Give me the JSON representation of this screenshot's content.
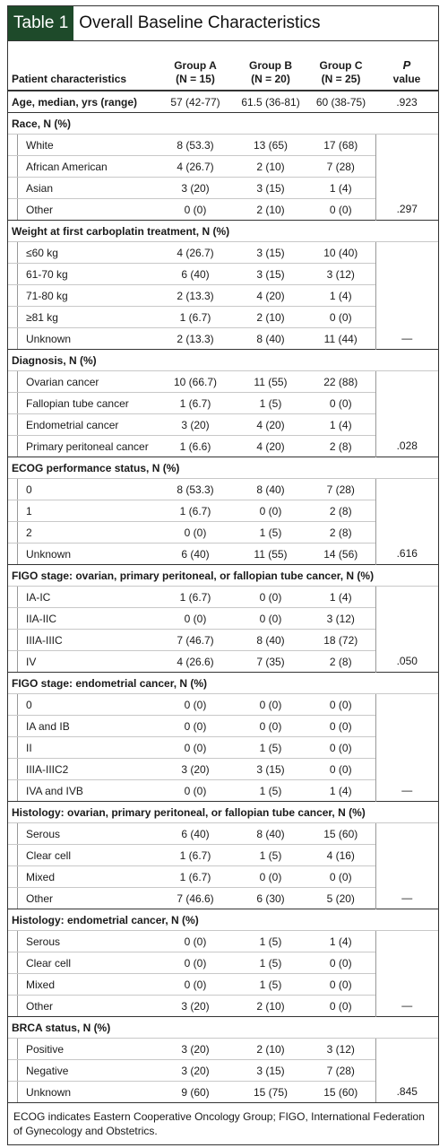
{
  "title": {
    "label": "Table 1",
    "text": "Overall Baseline Characteristics"
  },
  "columns": [
    [
      "Patient characteristics"
    ],
    [
      "Group A",
      "(N = 15)"
    ],
    [
      "Group B",
      "(N = 20)"
    ],
    [
      "Group C",
      "(N = 25)"
    ],
    [
      "P",
      "value"
    ]
  ],
  "age_row": {
    "label": "Age, median, yrs (range)",
    "values": [
      "57 (42-77)",
      "61.5 (36-81)",
      "60 (38-75)"
    ],
    "p": ".923"
  },
  "sections": [
    {
      "title": "Race, N (%)",
      "rows": [
        [
          "White",
          "8 (53.3)",
          "13 (65)",
          "17 (68)"
        ],
        [
          "African American",
          "4 (26.7)",
          "2 (10)",
          "7 (28)"
        ],
        [
          "Asian",
          "3 (20)",
          "3 (15)",
          "1 (4)"
        ],
        [
          "Other",
          "0 (0)",
          "2 (10)",
          "0 (0)"
        ]
      ],
      "p": ".297"
    },
    {
      "title": "Weight at first carboplatin treatment, N (%)",
      "rows": [
        [
          "≤60 kg",
          "4 (26.7)",
          "3 (15)",
          "10 (40)"
        ],
        [
          "61-70 kg",
          "6 (40)",
          "3 (15)",
          "3 (12)"
        ],
        [
          "71-80 kg",
          "2 (13.3)",
          "4 (20)",
          "1 (4)"
        ],
        [
          "≥81 kg",
          "1 (6.7)",
          "2 (10)",
          "0 (0)"
        ],
        [
          "Unknown",
          "2 (13.3)",
          "8 (40)",
          "11 (44)"
        ]
      ],
      "p": "—"
    },
    {
      "title": "Diagnosis, N (%)",
      "rows": [
        [
          "Ovarian cancer",
          "10 (66.7)",
          "11 (55)",
          "22 (88)"
        ],
        [
          "Fallopian tube cancer",
          "1 (6.7)",
          "1 (5)",
          "0 (0)"
        ],
        [
          "Endometrial cancer",
          "3 (20)",
          "4 (20)",
          "1 (4)"
        ],
        [
          "Primary peritoneal cancer",
          "1 (6.6)",
          "4 (20)",
          "2 (8)"
        ]
      ],
      "p": ".028"
    },
    {
      "title": "ECOG performance status, N (%)",
      "rows": [
        [
          "0",
          "8 (53.3)",
          "8 (40)",
          "7 (28)"
        ],
        [
          "1",
          "1 (6.7)",
          "0 (0)",
          "2 (8)"
        ],
        [
          "2",
          "0 (0)",
          "1 (5)",
          "2 (8)"
        ],
        [
          "Unknown",
          "6 (40)",
          "11 (55)",
          "14 (56)"
        ]
      ],
      "p": ".616"
    },
    {
      "title": "FIGO stage: ovarian, primary peritoneal, or fallopian tube cancer, N (%)",
      "rows": [
        [
          "IA-IC",
          "1 (6.7)",
          "0 (0)",
          "1 (4)"
        ],
        [
          "IIA-IIC",
          "0 (0)",
          "0 (0)",
          "3 (12)"
        ],
        [
          "IIIA-IIIC",
          "7 (46.7)",
          "8 (40)",
          "18 (72)"
        ],
        [
          "IV",
          "4 (26.6)",
          "7 (35)",
          "2 (8)"
        ]
      ],
      "p": ".050"
    },
    {
      "title": "FIGO stage: endometrial cancer, N (%)",
      "rows": [
        [
          "0",
          "0 (0)",
          "0 (0)",
          "0 (0)"
        ],
        [
          "IA and IB",
          "0 (0)",
          "0 (0)",
          "0 (0)"
        ],
        [
          "II",
          "0 (0)",
          "1 (5)",
          "0 (0)"
        ],
        [
          "IIIA-IIIC2",
          "3 (20)",
          "3 (15)",
          "0 (0)"
        ],
        [
          "IVA and IVB",
          "0 (0)",
          "1 (5)",
          "1 (4)"
        ]
      ],
      "p": "—"
    },
    {
      "title": "Histology: ovarian, primary peritoneal, or fallopian tube cancer, N (%)",
      "rows": [
        [
          "Serous",
          "6 (40)",
          "8 (40)",
          "15 (60)"
        ],
        [
          "Clear cell",
          "1 (6.7)",
          "1 (5)",
          "4 (16)"
        ],
        [
          "Mixed",
          "1 (6.7)",
          "0 (0)",
          "0 (0)"
        ],
        [
          "Other",
          "7 (46.6)",
          "6 (30)",
          "5 (20)"
        ]
      ],
      "p": "—"
    },
    {
      "title": "Histology: endometrial cancer, N (%)",
      "rows": [
        [
          "Serous",
          "0 (0)",
          "1 (5)",
          "1 (4)"
        ],
        [
          "Clear cell",
          "0 (0)",
          "1 (5)",
          "0 (0)"
        ],
        [
          "Mixed",
          "0 (0)",
          "1 (5)",
          "0 (0)"
        ],
        [
          "Other",
          "3 (20)",
          "2 (10)",
          "0 (0)"
        ]
      ],
      "p": "—"
    },
    {
      "title": "BRCA status, N (%)",
      "rows": [
        [
          "Positive",
          "3 (20)",
          "2 (10)",
          "3 (12)"
        ],
        [
          "Negative",
          "3 (20)",
          "3 (15)",
          "7 (28)"
        ],
        [
          "Unknown",
          "9 (60)",
          "15 (75)",
          "15 (60)"
        ]
      ],
      "p": ".845"
    }
  ],
  "footnote": "ECOG indicates Eastern Cooperative Oncology Group; FIGO, International Federation of Gynecology and Obstetrics."
}
